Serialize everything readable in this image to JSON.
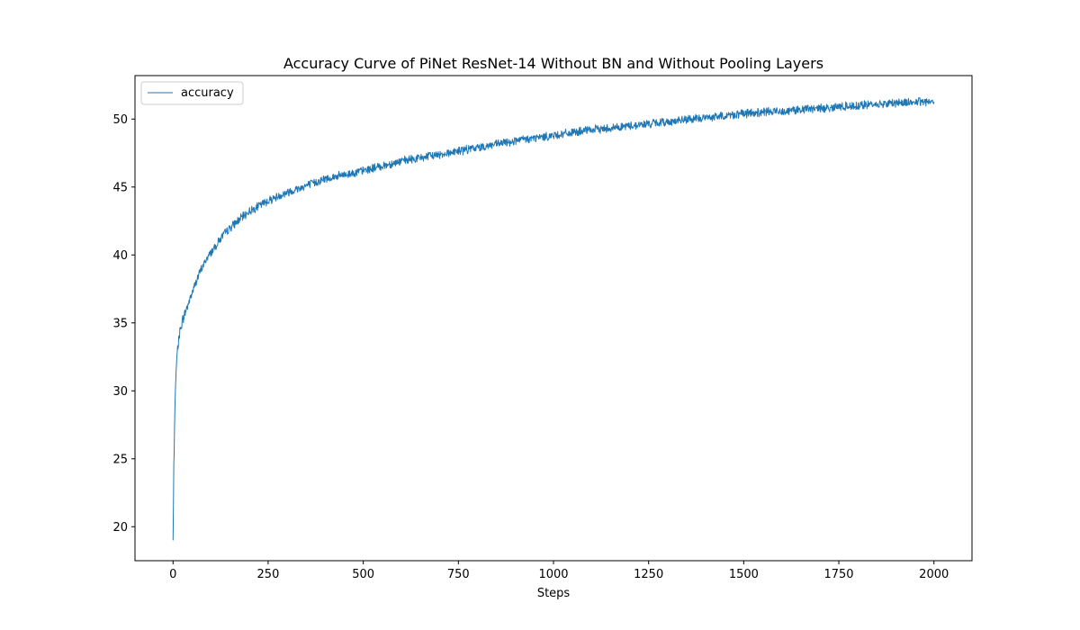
{
  "chart_data": {
    "type": "line",
    "title": "Accuracy Curve of PiNet ResNet-14 Without BN and Without Pooling Layers",
    "xlabel": "Steps",
    "ylabel": "",
    "xlim": [
      -100,
      2100
    ],
    "ylim": [
      17.5,
      53.2
    ],
    "xticks": [
      0,
      250,
      500,
      750,
      1000,
      1250,
      1500,
      1750,
      2000
    ],
    "yticks": [
      20,
      25,
      30,
      35,
      40,
      45,
      50
    ],
    "grid": false,
    "legend_position": "upper left",
    "colors": {
      "series": "#1f77b4",
      "axes": "#000000",
      "legend_border": "#cccccc"
    },
    "series": [
      {
        "name": "accuracy",
        "x": [
          0,
          1,
          2,
          3,
          4,
          5,
          6,
          8,
          10,
          13,
          16,
          20,
          25,
          30,
          40,
          50,
          60,
          75,
          90,
          110,
          130,
          150,
          170,
          200,
          250,
          300,
          350,
          400,
          450,
          500,
          600,
          700,
          800,
          900,
          1000,
          1100,
          1200,
          1300,
          1400,
          1500,
          1600,
          1700,
          1800,
          1900,
          2000
        ],
        "values": [
          19.0,
          21.5,
          24.6,
          25.5,
          27.5,
          28.8,
          29.9,
          31.4,
          32.4,
          33.3,
          34.0,
          34.6,
          35.2,
          35.6,
          36.4,
          37.2,
          38.0,
          39.0,
          39.8,
          40.6,
          41.4,
          42.0,
          42.5,
          43.2,
          44.0,
          44.6,
          45.1,
          45.6,
          45.9,
          46.2,
          46.9,
          47.4,
          47.9,
          48.4,
          48.8,
          49.2,
          49.5,
          49.8,
          50.1,
          50.4,
          50.6,
          50.8,
          51.0,
          51.2,
          51.3
        ]
      }
    ]
  }
}
